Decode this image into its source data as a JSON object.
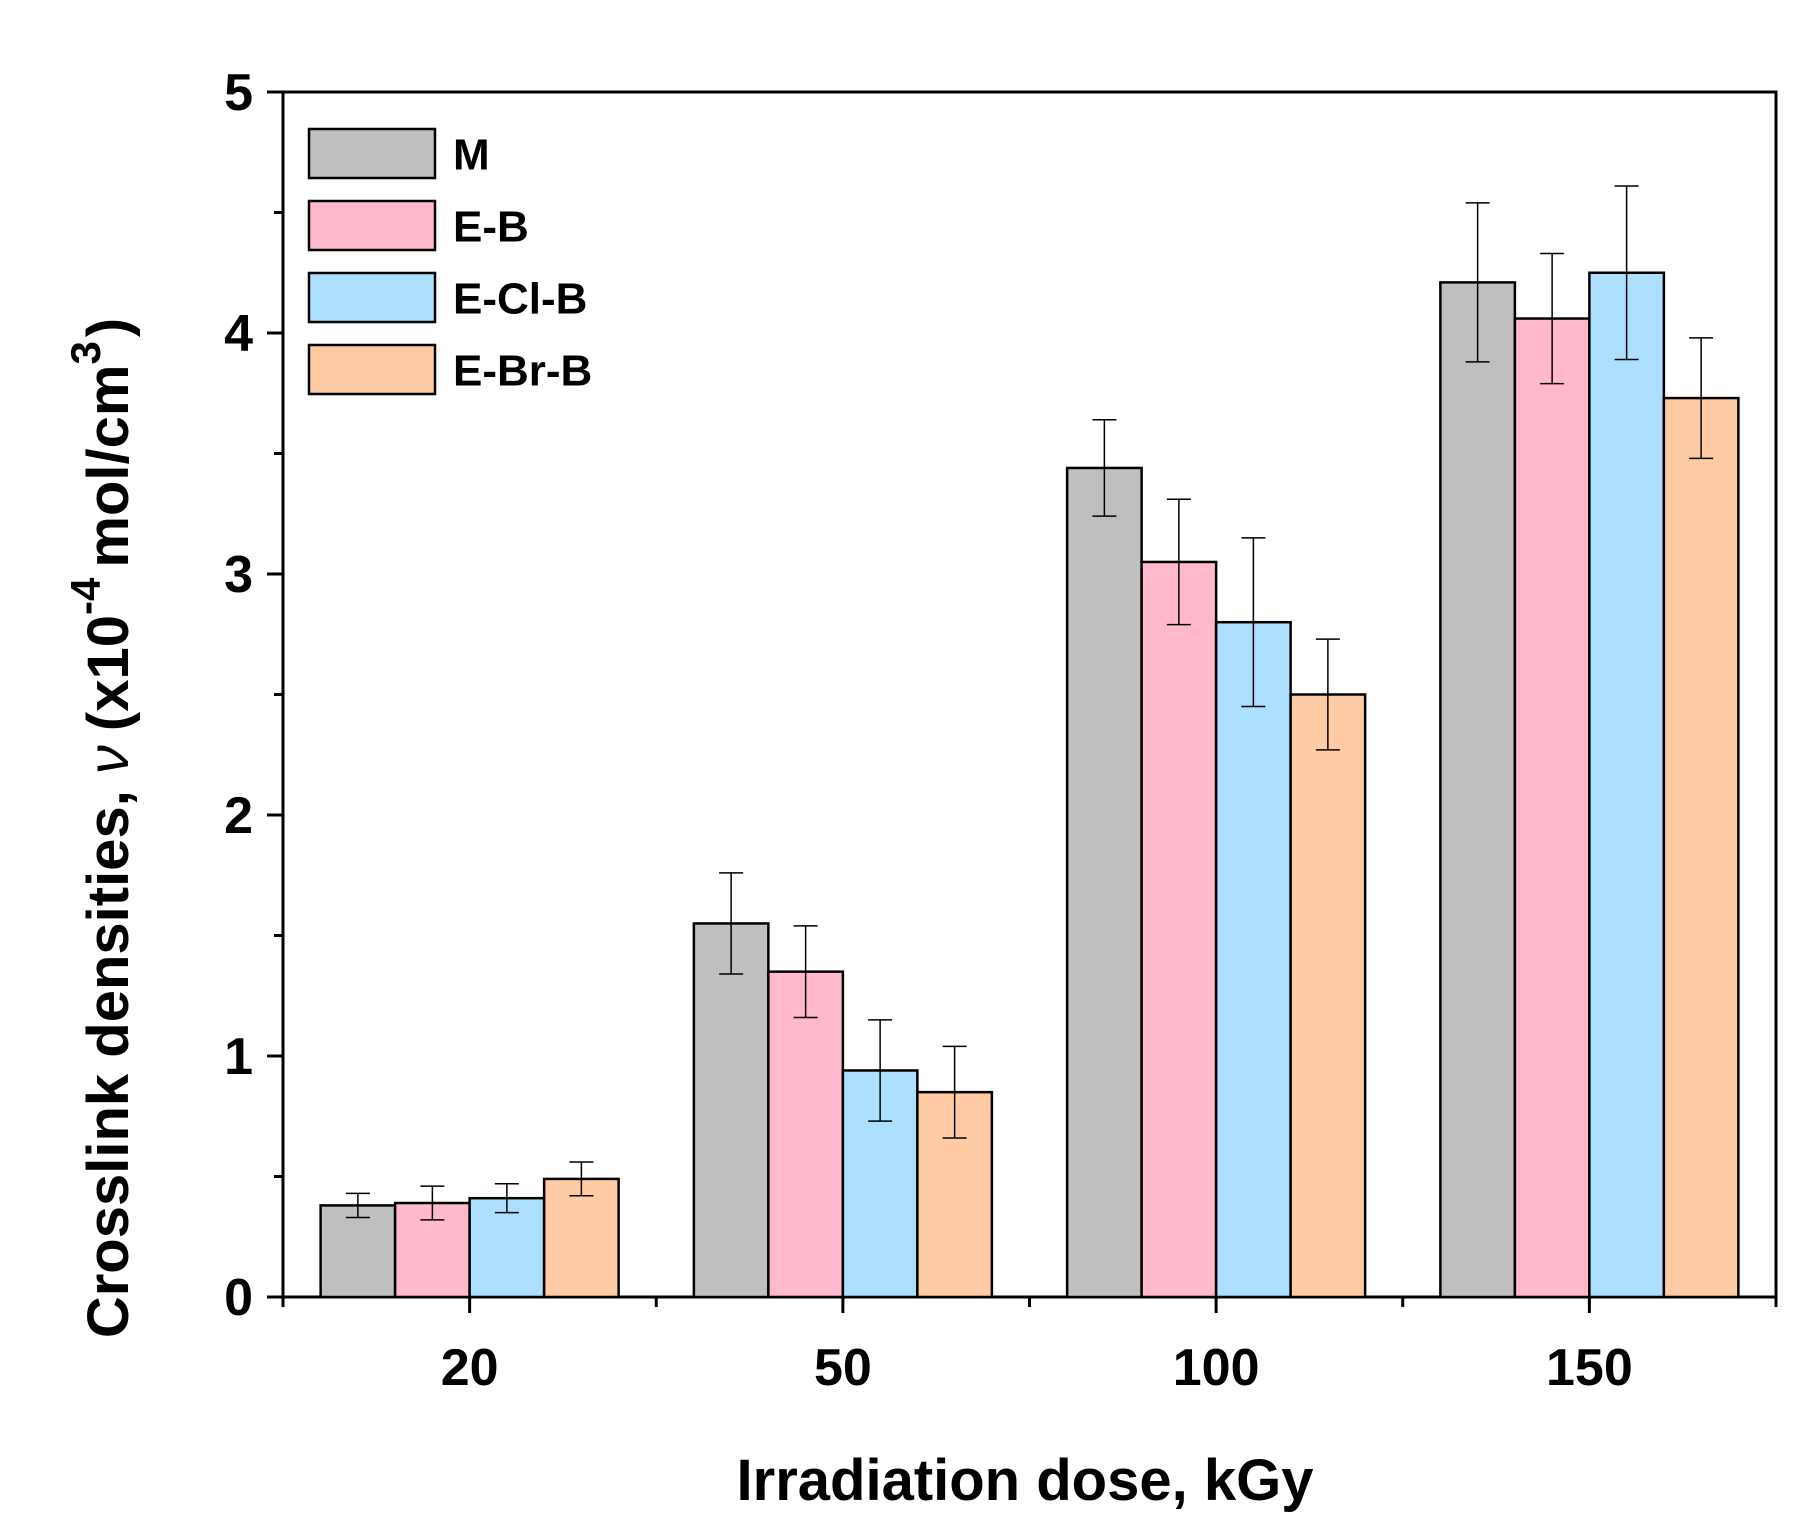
{
  "chart_data": {
    "type": "bar",
    "title": "",
    "xlabel": "Irradiation dose, kGy",
    "ylabel": {
      "main": "Crosslink densities, ",
      "symbol": "ν",
      "paren_open": "(",
      "multiplier": "x10",
      "exponent": "-4",
      "unit": "mol/cm",
      "unit_exponent": "3",
      "paren_close": ")"
    },
    "categories": [
      "20",
      "50",
      "100",
      "150"
    ],
    "ylim": [
      0,
      5
    ],
    "yticks": [
      "0",
      "1",
      "2",
      "3",
      "4",
      "5"
    ],
    "grid": false,
    "legend_position": "top-left",
    "series": [
      {
        "name": "M",
        "color": "#bfbfbf",
        "values": [
          0.38,
          1.55,
          3.44,
          4.21
        ],
        "errors": [
          0.05,
          0.21,
          0.2,
          0.33
        ]
      },
      {
        "name": "E-B",
        "color": "#ffb8cc",
        "values": [
          0.39,
          1.35,
          3.05,
          4.06
        ],
        "errors": [
          0.07,
          0.19,
          0.26,
          0.27
        ]
      },
      {
        "name": "E-Cl-B",
        "color": "#addfff",
        "values": [
          0.41,
          0.94,
          2.8,
          4.25
        ],
        "errors": [
          0.06,
          0.21,
          0.35,
          0.36
        ]
      },
      {
        "name": "E-Br-B",
        "color": "#ffcba5",
        "values": [
          0.49,
          0.85,
          2.5,
          3.73
        ],
        "errors": [
          0.07,
          0.19,
          0.23,
          0.25
        ]
      }
    ]
  }
}
